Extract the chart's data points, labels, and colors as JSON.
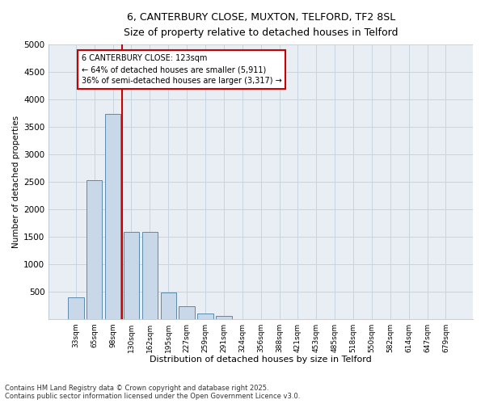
{
  "title_line1": "6, CANTERBURY CLOSE, MUXTON, TELFORD, TF2 8SL",
  "title_line2": "Size of property relative to detached houses in Telford",
  "xlabel": "Distribution of detached houses by size in Telford",
  "ylabel": "Number of detached properties",
  "categories": [
    "33sqm",
    "65sqm",
    "98sqm",
    "130sqm",
    "162sqm",
    "195sqm",
    "227sqm",
    "259sqm",
    "291sqm",
    "324sqm",
    "356sqm",
    "388sqm",
    "421sqm",
    "453sqm",
    "485sqm",
    "518sqm",
    "550sqm",
    "582sqm",
    "614sqm",
    "647sqm",
    "679sqm"
  ],
  "values": [
    390,
    2520,
    3730,
    1580,
    1580,
    480,
    230,
    100,
    50,
    0,
    0,
    0,
    0,
    0,
    0,
    0,
    0,
    0,
    0,
    0,
    0
  ],
  "bar_color": "#c8d8e8",
  "bar_edge_color": "#5a8aaa",
  "property_line_x": 2.5,
  "property_line_label": "6 CANTERBURY CLOSE: 123sqm",
  "annotation_line2": "← 64% of detached houses are smaller (5,911)",
  "annotation_line3": "36% of semi-detached houses are larger (3,317) →",
  "annotation_box_color": "#cc0000",
  "vline_color": "#cc0000",
  "ylim": [
    0,
    5000
  ],
  "yticks": [
    0,
    500,
    1000,
    1500,
    2000,
    2500,
    3000,
    3500,
    4000,
    4500,
    5000
  ],
  "grid_color": "#c8d4de",
  "bg_color": "#e8eef4",
  "footer_line1": "Contains HM Land Registry data © Crown copyright and database right 2025.",
  "footer_line2": "Contains public sector information licensed under the Open Government Licence v3.0."
}
